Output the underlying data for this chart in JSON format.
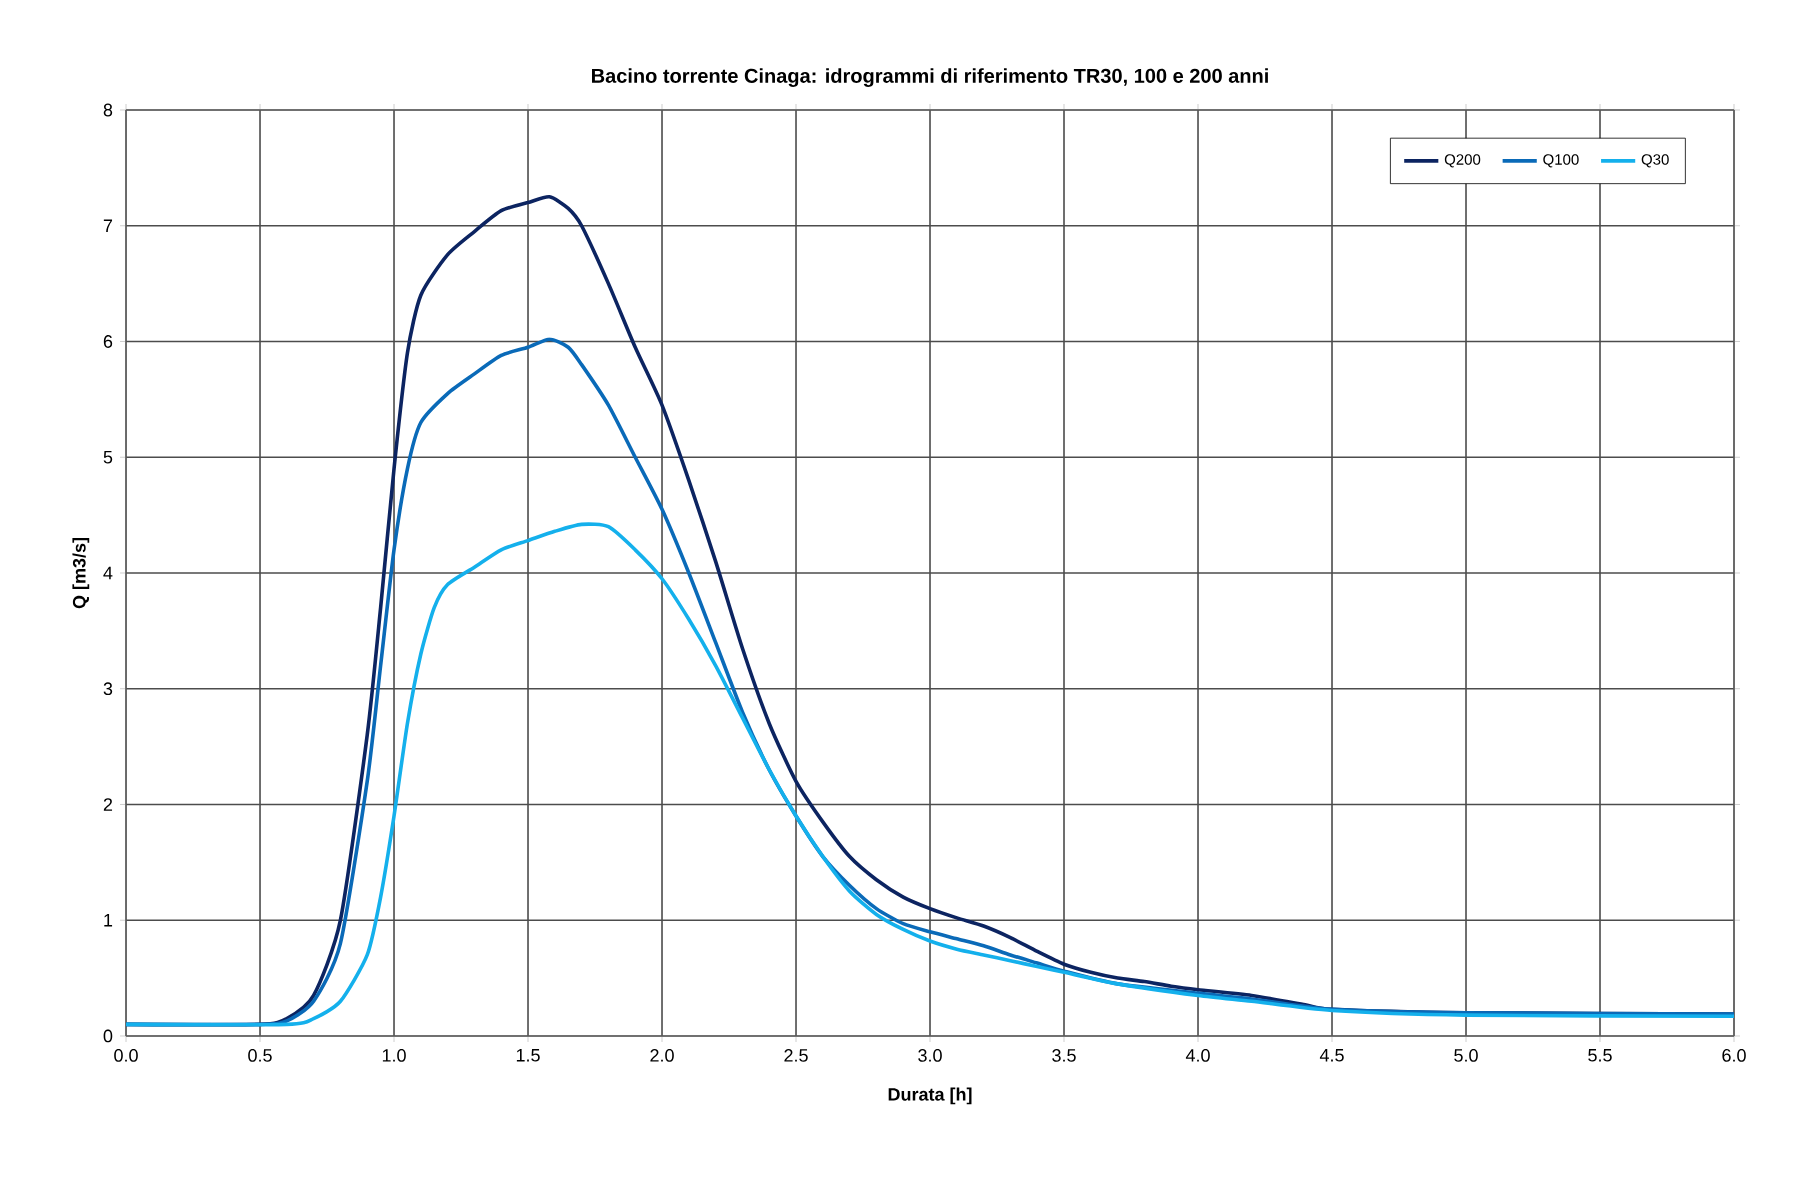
{
  "chart_data": {
    "type": "line",
    "title": "Bacino torrente Cinaga: idrogrammi di riferimento TR30, 100 e 200 anni",
    "xlabel": "Durata [h]",
    "ylabel": "Q [m3/s]",
    "xlim": [
      0,
      6
    ],
    "ylim": [
      0,
      8
    ],
    "xticks": [
      {
        "value": 0,
        "label": "0.0"
      },
      {
        "value": 0.5,
        "label": "0.5"
      },
      {
        "value": 1,
        "label": "1.0"
      },
      {
        "value": 1.5,
        "label": "1.5"
      },
      {
        "value": 2,
        "label": "2.0"
      },
      {
        "value": 2.5,
        "label": "2.5"
      },
      {
        "value": 3,
        "label": "3.0"
      },
      {
        "value": 3.5,
        "label": "3.5"
      },
      {
        "value": 4,
        "label": "4.0"
      },
      {
        "value": 4.5,
        "label": "4.5"
      },
      {
        "value": 5,
        "label": "5.0"
      },
      {
        "value": 5.5,
        "label": "5.5"
      },
      {
        "value": 6,
        "label": "6.0"
      }
    ],
    "yticks": [
      0,
      1,
      2,
      3,
      4,
      5,
      6,
      7,
      8
    ],
    "grid": true,
    "legend": "top right",
    "marker": "none",
    "line_style": "solid",
    "series": [
      {
        "name": "Q200",
        "color": "#0c2461",
        "x": [
          0,
          0.5,
          0.6,
          0.7,
          0.8,
          0.9,
          0.95,
          1.0,
          1.05,
          1.1,
          1.2,
          1.3,
          1.4,
          1.5,
          1.58,
          1.65,
          1.7,
          1.8,
          1.9,
          2.0,
          2.1,
          2.2,
          2.3,
          2.4,
          2.5,
          2.6,
          2.7,
          2.8,
          2.9,
          3.0,
          3.1,
          3.2,
          3.3,
          3.4,
          3.5,
          3.6,
          3.7,
          3.8,
          3.9,
          4.0,
          4.2,
          4.4,
          4.5,
          5.0,
          6.0
        ],
        "values": [
          0.1,
          0.1,
          0.15,
          0.35,
          1.0,
          2.6,
          3.7,
          4.9,
          5.9,
          6.4,
          6.75,
          6.95,
          7.13,
          7.2,
          7.25,
          7.15,
          7.0,
          6.5,
          5.95,
          5.45,
          4.8,
          4.1,
          3.35,
          2.7,
          2.2,
          1.85,
          1.55,
          1.35,
          1.2,
          1.1,
          1.02,
          0.95,
          0.85,
          0.73,
          0.62,
          0.55,
          0.5,
          0.47,
          0.43,
          0.4,
          0.35,
          0.27,
          0.23,
          0.2,
          0.19
        ]
      },
      {
        "name": "Q100",
        "color": "#0a6ab8",
        "x": [
          0,
          0.5,
          0.6,
          0.7,
          0.8,
          0.9,
          0.95,
          1.0,
          1.05,
          1.1,
          1.2,
          1.3,
          1.4,
          1.5,
          1.58,
          1.65,
          1.7,
          1.8,
          1.9,
          2.0,
          2.1,
          2.2,
          2.3,
          2.4,
          2.5,
          2.6,
          2.7,
          2.8,
          2.9,
          3.0,
          3.1,
          3.2,
          3.3,
          3.4,
          3.5,
          3.7,
          4.0,
          4.2,
          4.5,
          5.0,
          6.0
        ],
        "values": [
          0.1,
          0.1,
          0.13,
          0.3,
          0.8,
          2.2,
          3.2,
          4.2,
          4.9,
          5.3,
          5.55,
          5.72,
          5.88,
          5.95,
          6.02,
          5.95,
          5.8,
          5.45,
          5.0,
          4.55,
          4.0,
          3.4,
          2.8,
          2.3,
          1.9,
          1.55,
          1.3,
          1.1,
          0.97,
          0.9,
          0.84,
          0.78,
          0.7,
          0.63,
          0.56,
          0.45,
          0.37,
          0.32,
          0.23,
          0.2,
          0.19
        ]
      },
      {
        "name": "Q30",
        "color": "#14b0ec",
        "x": [
          0,
          0.6,
          0.7,
          0.8,
          0.9,
          0.95,
          1.0,
          1.05,
          1.1,
          1.15,
          1.2,
          1.3,
          1.4,
          1.5,
          1.6,
          1.7,
          1.8,
          1.9,
          2.0,
          2.1,
          2.2,
          2.3,
          2.4,
          2.5,
          2.6,
          2.7,
          2.8,
          2.9,
          3.0,
          3.1,
          3.2,
          3.3,
          3.4,
          3.5,
          3.7,
          4.0,
          4.2,
          4.5,
          5.0,
          6.0
        ],
        "values": [
          0.1,
          0.1,
          0.15,
          0.3,
          0.7,
          1.2,
          1.9,
          2.7,
          3.3,
          3.7,
          3.9,
          4.05,
          4.2,
          4.28,
          4.36,
          4.42,
          4.4,
          4.2,
          3.95,
          3.6,
          3.2,
          2.75,
          2.3,
          1.9,
          1.55,
          1.25,
          1.05,
          0.92,
          0.82,
          0.75,
          0.7,
          0.65,
          0.6,
          0.55,
          0.45,
          0.35,
          0.3,
          0.22,
          0.18,
          0.17
        ]
      }
    ]
  }
}
